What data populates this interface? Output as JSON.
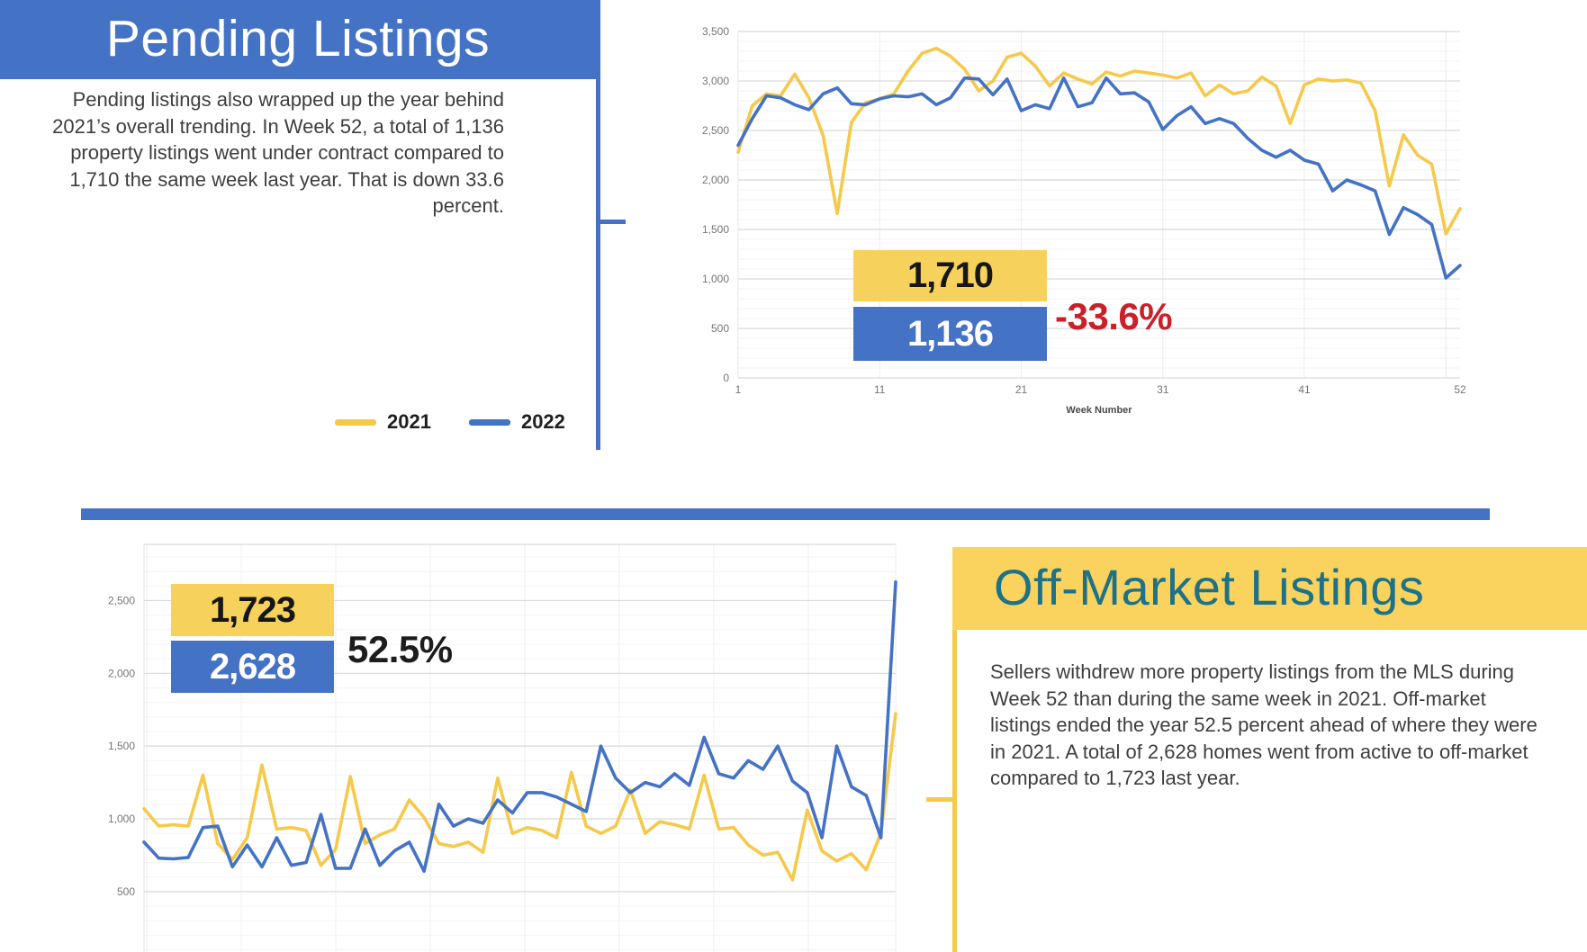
{
  "colors": {
    "blue": "#4472C4",
    "yellow": "#F5C94B",
    "yellow_box": "#F6D25C",
    "yellow_banner": "#FAD35E",
    "red": "#C9202A",
    "teal": "#1E7287",
    "body_text": "#3E3E3E",
    "axis_text": "#757575",
    "grid_major": "#D9D9D9",
    "grid_minor": "#F3F3F3",
    "grid_vert": "#EBEBEB"
  },
  "pending": {
    "title": "Pending Listings",
    "paragraph": "Pending listings also wrapped up the year behind 2021’s overall trending. In Week 52, a total of 1,136 property listings went under contract compared to 1,710 the same week last year. That is down 33.6 percent.",
    "legend": [
      {
        "label": "2021",
        "color": "#F5C94B"
      },
      {
        "label": "2022",
        "color": "#4472C4"
      }
    ],
    "callout_2021": "1,710",
    "callout_2022": "1,136",
    "pct_change": "-33.6%"
  },
  "offmarket": {
    "title": "Off-Market Listings",
    "paragraph": "Sellers withdrew more property listings from the MLS during Week 52 than during the same week in 2021. Off-market listings ended the year 52.5 percent ahead of where they were in 2021. A total of 2,628 homes went from active to off-market compared to 1,723 last year.",
    "callout_2021": "1,723",
    "callout_2022": "2,628",
    "pct_change": "52.5%"
  },
  "chart_data": [
    {
      "name": "pending-listings-weekly",
      "type": "line",
      "title": "",
      "xlabel": "Week Number",
      "ylabel": "",
      "x_ticks": [
        1,
        11,
        21,
        31,
        41,
        52
      ],
      "grid_weeks": [
        11,
        21,
        31,
        41,
        51
      ],
      "y_ticks": [
        0,
        500,
        1000,
        1500,
        2000,
        2500,
        3000,
        3500
      ],
      "ylim": [
        0,
        3500
      ],
      "x_range": [
        1,
        52
      ],
      "series": [
        {
          "name": "2021",
          "color": "#F5C94B",
          "values": [
            2280,
            2750,
            2870,
            2850,
            3070,
            2830,
            2450,
            1660,
            2580,
            2780,
            2820,
            2870,
            3100,
            3280,
            3330,
            3250,
            3120,
            2900,
            3000,
            3240,
            3280,
            3150,
            2950,
            3080,
            3020,
            2970,
            3090,
            3050,
            3100,
            3080,
            3060,
            3030,
            3080,
            2850,
            2960,
            2870,
            2900,
            3040,
            2950,
            2570,
            2960,
            3020,
            3000,
            3010,
            2980,
            2700,
            1940,
            2455,
            2250,
            2160,
            1455,
            1710
          ]
        },
        {
          "name": "2022",
          "color": "#4472C4",
          "values": [
            2350,
            2620,
            2850,
            2830,
            2760,
            2710,
            2870,
            2930,
            2770,
            2760,
            2820,
            2850,
            2840,
            2870,
            2760,
            2830,
            3030,
            3020,
            2860,
            3020,
            2700,
            2760,
            2720,
            3030,
            2740,
            2780,
            3030,
            2870,
            2880,
            2790,
            2510,
            2650,
            2740,
            2570,
            2620,
            2570,
            2420,
            2300,
            2230,
            2300,
            2200,
            2160,
            1890,
            2000,
            1950,
            1890,
            1450,
            1720,
            1650,
            1550,
            1010,
            1136
          ]
        }
      ],
      "annotations": {
        "week52_2021": 1710,
        "week52_2022": 1136,
        "pct": "-33.6%"
      }
    },
    {
      "name": "offmarket-listings-weekly",
      "type": "line",
      "title": "",
      "xlabel": "",
      "ylabel": "",
      "x_ticks": [],
      "y_ticks": [
        500,
        1000,
        1500,
        2000,
        2500
      ],
      "ylim": [
        0,
        2886
      ],
      "x_range": [
        1,
        52
      ],
      "series": [
        {
          "name": "2021",
          "color": "#F5C94B",
          "values": [
            1070,
            950,
            960,
            950,
            1300,
            830,
            720,
            870,
            1370,
            930,
            940,
            920,
            680,
            790,
            1290,
            830,
            890,
            930,
            1130,
            1010,
            830,
            810,
            840,
            770,
            1280,
            900,
            940,
            920,
            870,
            1320,
            950,
            900,
            950,
            1200,
            900,
            980,
            960,
            930,
            1300,
            930,
            940,
            820,
            750,
            770,
            580,
            1060,
            780,
            710,
            760,
            650,
            900,
            1723
          ]
        },
        {
          "name": "2022",
          "color": "#4472C4",
          "values": [
            840,
            730,
            725,
            735,
            940,
            950,
            670,
            820,
            670,
            870,
            680,
            700,
            1030,
            660,
            660,
            930,
            680,
            780,
            840,
            640,
            1100,
            950,
            1000,
            970,
            1130,
            1040,
            1180,
            1180,
            1150,
            1100,
            1050,
            1500,
            1280,
            1180,
            1250,
            1220,
            1310,
            1230,
            1560,
            1310,
            1280,
            1400,
            1340,
            1500,
            1260,
            1180,
            870,
            1500,
            1220,
            1160,
            870,
            2628
          ]
        }
      ],
      "annotations": {
        "week52_2021": 1723,
        "week52_2022": 2628,
        "pct": "52.5%"
      }
    }
  ]
}
